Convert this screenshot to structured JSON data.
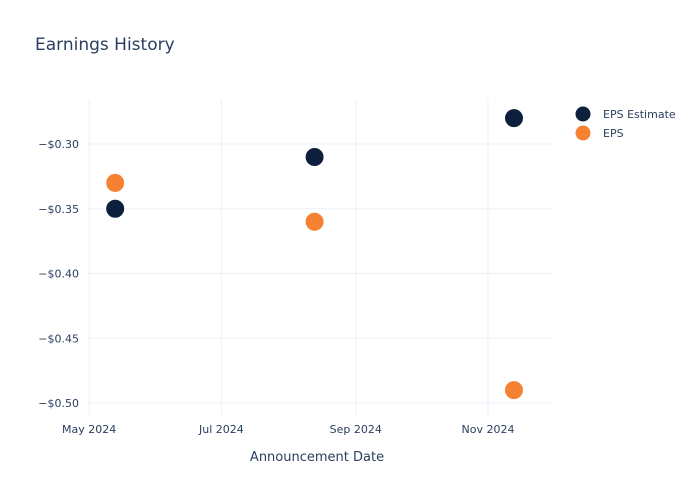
{
  "chart_data": {
    "type": "scatter",
    "title": "Earnings History",
    "xlabel": "Announcement Date",
    "ylabel": "",
    "x_ticks": [
      {
        "date": "2024-05-01",
        "label": "May 2024"
      },
      {
        "date": "2024-07-01",
        "label": "Jul 2024"
      },
      {
        "date": "2024-09-01",
        "label": "Sep 2024"
      },
      {
        "date": "2024-11-01",
        "label": "Nov 2024"
      }
    ],
    "y_ticks": [
      {
        "value": -0.3,
        "label": "−$0.30"
      },
      {
        "value": -0.35,
        "label": "−$0.35"
      },
      {
        "value": -0.4,
        "label": "−$0.40"
      },
      {
        "value": -0.45,
        "label": "−$0.45"
      },
      {
        "value": -0.5,
        "label": "−$0.50"
      }
    ],
    "xlim": [
      "2024-04-30",
      "2024-12-01"
    ],
    "ylim": [
      -0.51,
      -0.266
    ],
    "grid": true,
    "legend_position": "top-right",
    "series": [
      {
        "name": "EPS Estimate",
        "color": "#0d1f3c",
        "points": [
          {
            "x": "2024-05-13",
            "y": -0.35
          },
          {
            "x": "2024-08-13",
            "y": -0.31
          },
          {
            "x": "2024-11-13",
            "y": -0.28
          }
        ]
      },
      {
        "name": "EPS",
        "color": "#f58232",
        "points": [
          {
            "x": "2024-05-13",
            "y": -0.33
          },
          {
            "x": "2024-08-13",
            "y": -0.36
          },
          {
            "x": "2024-11-13",
            "y": -0.49
          }
        ]
      }
    ]
  }
}
